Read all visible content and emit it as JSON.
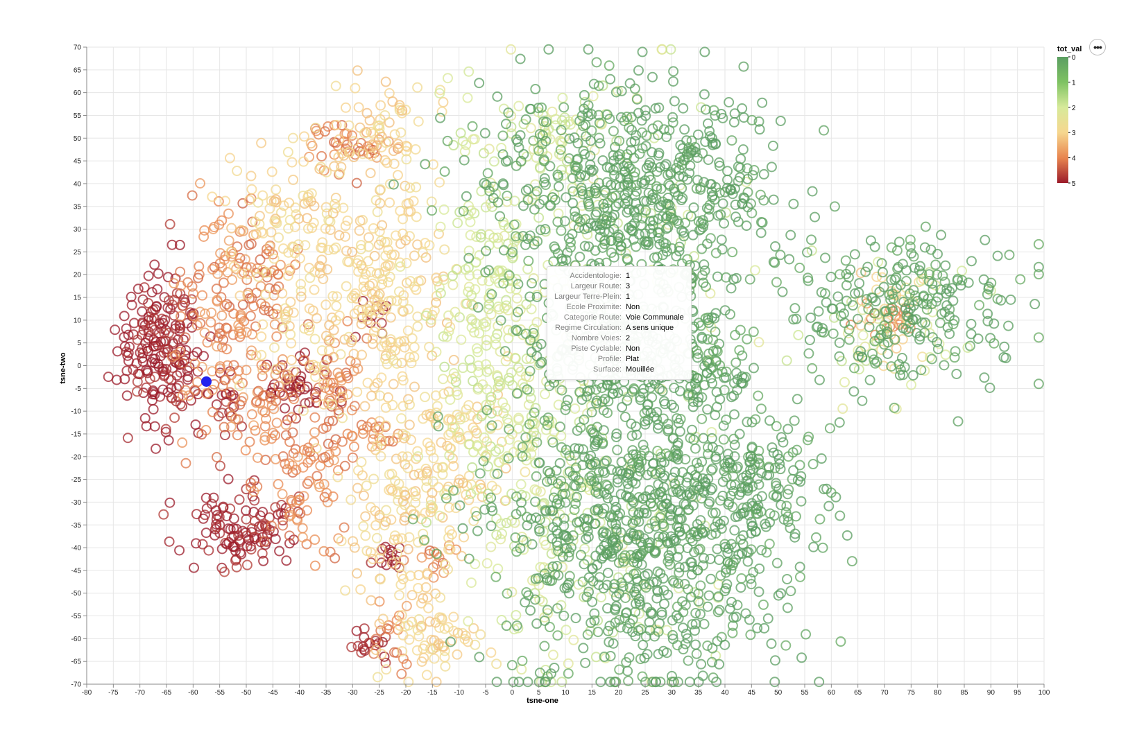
{
  "chart_data": {
    "type": "scatter",
    "xlabel": "tsne-one",
    "ylabel": "tsne-two",
    "xlim": [
      -80,
      100
    ],
    "ylim": [
      -70,
      70
    ],
    "xticks": [
      -80,
      -75,
      -70,
      -65,
      -60,
      -55,
      -50,
      -45,
      -40,
      -35,
      -30,
      -25,
      -20,
      -15,
      -10,
      -5,
      0,
      5,
      10,
      15,
      20,
      25,
      30,
      35,
      40,
      45,
      50,
      55,
      60,
      65,
      70,
      75,
      80,
      85,
      90,
      95,
      100
    ],
    "yticks": [
      70,
      65,
      60,
      55,
      50,
      45,
      40,
      35,
      30,
      25,
      20,
      15,
      10,
      5,
      0,
      -5,
      -10,
      -15,
      -20,
      -25,
      -30,
      -35,
      -40,
      -45,
      -50,
      -55,
      -60,
      -65,
      -70
    ],
    "grid": true,
    "marker": "open-circle",
    "color_field": "tot_val",
    "legend": {
      "title": "tot_val",
      "position": "top-right",
      "type": "gradient",
      "ticks": [
        "0",
        "1",
        "2",
        "3",
        "4",
        "5"
      ],
      "colors": [
        "#5b9e62",
        "#7ec262",
        "#d7ea9a",
        "#f6d78f",
        "#e8854f",
        "#9b1b2a"
      ]
    },
    "highlighted_point": {
      "x": -57.5,
      "y": -3.5,
      "color": "#2222ee"
    },
    "clusters": [
      {
        "x": -66,
        "y": 5,
        "sx": 4,
        "sy": 9,
        "n": 200,
        "v": 5
      },
      {
        "x": -40,
        "y": -5,
        "sx": 3,
        "sy": 3,
        "n": 45,
        "v": 5
      },
      {
        "x": -50,
        "y": -36,
        "sx": 5,
        "sy": 4,
        "n": 110,
        "v": 5
      },
      {
        "x": -27,
        "y": -62,
        "sx": 2,
        "sy": 2,
        "n": 18,
        "v": 5
      },
      {
        "x": -24,
        "y": -42,
        "sx": 2.5,
        "sy": 2,
        "n": 14,
        "v": 5
      },
      {
        "x": -26,
        "y": 10,
        "sx": 2,
        "sy": 3,
        "n": 10,
        "v": 5
      },
      {
        "x": -54,
        "y": -7,
        "sx": 2,
        "sy": 3,
        "n": 18,
        "v": 5
      },
      {
        "x": -57,
        "y": 10,
        "sx": 4,
        "sy": 10,
        "n": 70,
        "v": 4
      },
      {
        "x": -46,
        "y": -10,
        "sx": 6,
        "sy": 10,
        "n": 110,
        "v": 4
      },
      {
        "x": -50,
        "y": 20,
        "sx": 5,
        "sy": 8,
        "n": 80,
        "v": 4
      },
      {
        "x": -32,
        "y": 48,
        "sx": 3,
        "sy": 3,
        "n": 28,
        "v": 4
      },
      {
        "x": -25,
        "y": 48,
        "sx": 2,
        "sy": 2,
        "n": 12,
        "v": 4
      },
      {
        "x": -27,
        "y": -15,
        "sx": 3,
        "sy": 2,
        "n": 20,
        "v": 4
      },
      {
        "x": -15,
        "y": -42,
        "sx": 3,
        "sy": 2,
        "n": 14,
        "v": 4
      },
      {
        "x": -33,
        "y": -5,
        "sx": 3,
        "sy": 6,
        "n": 40,
        "v": 4
      },
      {
        "x": -38,
        "y": -28,
        "sx": 4,
        "sy": 8,
        "n": 55,
        "v": 4
      },
      {
        "x": -23,
        "y": -58,
        "sx": 2,
        "sy": 4,
        "n": 16,
        "v": 4
      },
      {
        "x": 70,
        "y": 10,
        "sx": 3,
        "sy": 2,
        "n": 18,
        "v": 4
      },
      {
        "x": -35,
        "y": 20,
        "sx": 7,
        "sy": 14,
        "n": 170,
        "v": 3
      },
      {
        "x": -22,
        "y": 15,
        "sx": 5,
        "sy": 18,
        "n": 180,
        "v": 3
      },
      {
        "x": -20,
        "y": -32,
        "sx": 6,
        "sy": 12,
        "n": 150,
        "v": 3
      },
      {
        "x": -10,
        "y": -18,
        "sx": 5,
        "sy": 8,
        "n": 70,
        "v": 3
      },
      {
        "x": -15,
        "y": -60,
        "sx": 5,
        "sy": 5,
        "n": 60,
        "v": 3
      },
      {
        "x": -25,
        "y": 50,
        "sx": 4,
        "sy": 4,
        "n": 50,
        "v": 3
      },
      {
        "x": -45,
        "y": 35,
        "sx": 6,
        "sy": 6,
        "n": 50,
        "v": 3
      },
      {
        "x": 70,
        "y": 12,
        "sx": 4,
        "sy": 6,
        "n": 30,
        "v": 3
      },
      {
        "x": -5,
        "y": 10,
        "sx": 5,
        "sy": 25,
        "n": 220,
        "v": 2
      },
      {
        "x": 5,
        "y": -20,
        "sx": 6,
        "sy": 25,
        "n": 170,
        "v": 2
      },
      {
        "x": 8,
        "y": 50,
        "sx": 5,
        "sy": 5,
        "n": 40,
        "v": 2
      },
      {
        "x": 22,
        "y": -40,
        "sx": 8,
        "sy": 20,
        "n": 70,
        "v": 2
      },
      {
        "x": 20,
        "y": 30,
        "sx": 10,
        "sy": 20,
        "n": 80,
        "v": 2
      },
      {
        "x": 68,
        "y": 8,
        "sx": 10,
        "sy": 8,
        "n": 40,
        "v": 2
      },
      {
        "x": 25,
        "y": 35,
        "sx": 12,
        "sy": 14,
        "n": 620,
        "v": 0
      },
      {
        "x": 25,
        "y": -35,
        "sx": 14,
        "sy": 17,
        "n": 900,
        "v": 0
      },
      {
        "x": 20,
        "y": 5,
        "sx": 10,
        "sy": 10,
        "n": 260,
        "v": 0
      },
      {
        "x": 75,
        "y": 12,
        "sx": 10,
        "sy": 8,
        "n": 240,
        "v": 0
      },
      {
        "x": 2,
        "y": 45,
        "sx": 8,
        "sy": 8,
        "n": 50,
        "v": 0
      },
      {
        "x": 38,
        "y": 0,
        "sx": 4,
        "sy": 8,
        "n": 60,
        "v": 0
      },
      {
        "x": 45,
        "y": -30,
        "sx": 5,
        "sy": 7,
        "n": 100,
        "v": 0
      }
    ]
  },
  "tooltip": {
    "rows": [
      {
        "key": "Accidentologie:",
        "value": "1"
      },
      {
        "key": "Largeur Route:",
        "value": "3"
      },
      {
        "key": "Largeur Terre-Plein:",
        "value": "1"
      },
      {
        "key": "Ecole Proximite:",
        "value": "Non"
      },
      {
        "key": "Categorie Route:",
        "value": "Voie Communale"
      },
      {
        "key": "Regime Circulation:",
        "value": "A sens unique"
      },
      {
        "key": "Nombre Voies:",
        "value": "2"
      },
      {
        "key": "Piste Cyclable:",
        "value": "Non"
      },
      {
        "key": "Profile:",
        "value": "Plat"
      },
      {
        "key": "Surface:",
        "value": "Mouillée"
      }
    ]
  },
  "menu": {
    "label": "•••",
    "icon": "ellipsis-icon"
  }
}
